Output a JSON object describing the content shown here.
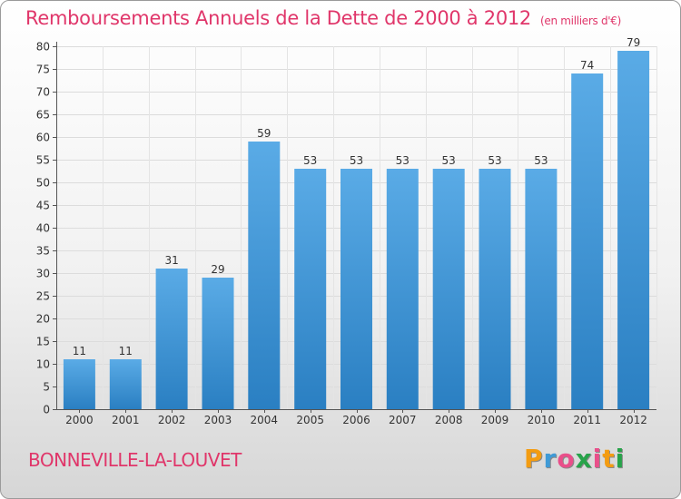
{
  "title": "Remboursements Annuels de la Dette de 2000 à 2012",
  "unit": "(en milliers d'€)",
  "commune": "BONNEVILLE-LA-LOUVET",
  "logo": {
    "letters": [
      "P",
      "r",
      "o",
      "x",
      "i",
      "t",
      "i"
    ],
    "colors": [
      "#f39c12",
      "#3f9ad6",
      "#e94f8a",
      "#27a34a",
      "#e94f8a",
      "#f39c12",
      "#27a34a"
    ]
  },
  "colors": {
    "bar_light": "#5aabe6",
    "bar_dark": "#2a7fc2",
    "accent": "#e0366a"
  },
  "chart_data": {
    "type": "bar",
    "title": "Remboursements Annuels de la Dette de 2000 à 2012",
    "xlabel": "",
    "ylabel": "",
    "categories": [
      "2000",
      "2001",
      "2002",
      "2003",
      "2004",
      "2005",
      "2006",
      "2007",
      "2008",
      "2009",
      "2010",
      "2011",
      "2012"
    ],
    "values": [
      11,
      11,
      31,
      29,
      59,
      53,
      53,
      53,
      53,
      53,
      53,
      74,
      79
    ],
    "ylim": [
      0,
      80
    ],
    "yticks": [
      0,
      5,
      10,
      15,
      20,
      25,
      30,
      35,
      40,
      45,
      50,
      55,
      60,
      65,
      70,
      75,
      80
    ],
    "grid": true
  }
}
